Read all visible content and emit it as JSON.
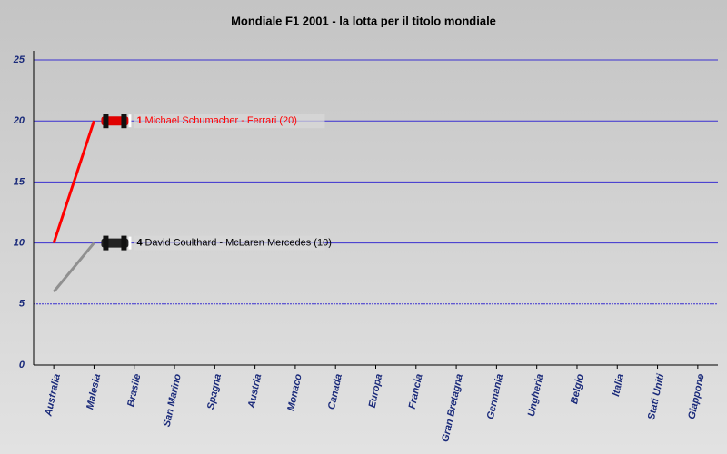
{
  "chart_data": {
    "type": "line",
    "title": "Mondiale F1 2001 - la lotta per il titolo mondiale",
    "categories": [
      "Australia",
      "Malesia",
      "Brasile",
      "San Marino",
      "Spagna",
      "Austria",
      "Monaco",
      "Canada",
      "Europa",
      "Francia",
      "Gran Bretagna",
      "Germania",
      "Ungheria",
      "Belgio",
      "Italia",
      "Stati Uniti",
      "Giappone"
    ],
    "series": [
      {
        "name": "Michael Schumacher - Ferrari (20)",
        "position": "1",
        "color": "#ff0000",
        "label_color": "#ff0000",
        "values": [
          10,
          20,
          null,
          null,
          null,
          null,
          null,
          null,
          null,
          null,
          null,
          null,
          null,
          null,
          null,
          null,
          null
        ]
      },
      {
        "name": "David Coulthard - McLaren Mercedes (10)",
        "position": "4",
        "color": "#909090",
        "label_color": "#000000",
        "values": [
          6,
          10,
          null,
          null,
          null,
          null,
          null,
          null,
          null,
          null,
          null,
          null,
          null,
          null,
          null,
          null,
          null
        ]
      }
    ],
    "ylim": [
      0,
      25
    ],
    "yticks": [
      0,
      5,
      10,
      15,
      20,
      25
    ],
    "grid": true,
    "grid_color": "#3a2fd0"
  }
}
